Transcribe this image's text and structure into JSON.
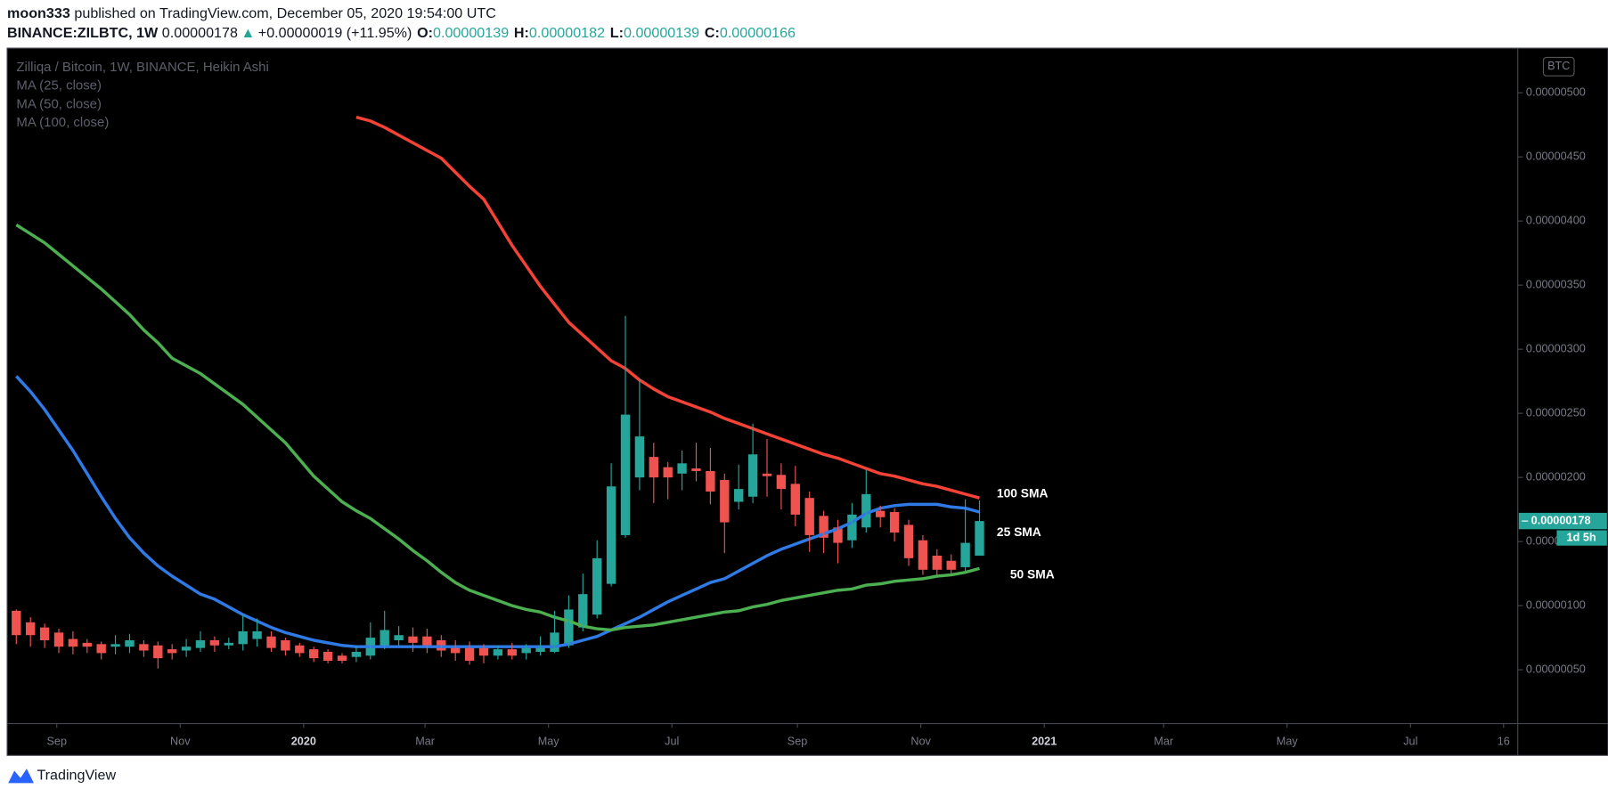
{
  "header": {
    "user": "moon333",
    "byline": "published on TradingView.com, December 05, 2020 19:54:00 UTC",
    "symbol": "BINANCE:ZILBTC, 1W",
    "last": "0.00000178",
    "arrow": "▲",
    "change": "+0.00000019 (+11.95%)",
    "ohlc": [
      {
        "key": "O:",
        "value": "0.00000139"
      },
      {
        "key": "H:",
        "value": "0.00000182"
      },
      {
        "key": "L:",
        "value": "0.00000139"
      },
      {
        "key": "C:",
        "value": "0.00000166"
      }
    ]
  },
  "chart_data": {
    "type": "candlestick",
    "title": "Zilliqa / Bitcoin, 1W, BINANCE, Heikin Ashi",
    "currency": "BTC",
    "last_price_label": "0.00000178",
    "countdown": "1d 5h",
    "up_color": "#26a69a",
    "down_color": "#ef5350",
    "x": [
      "2019-08-12",
      "2019-08-19",
      "2019-08-26",
      "2019-09-02",
      "2019-09-09",
      "2019-09-16",
      "2019-09-23",
      "2019-09-30",
      "2019-10-07",
      "2019-10-14",
      "2019-10-21",
      "2019-10-28",
      "2019-11-04",
      "2019-11-11",
      "2019-11-18",
      "2019-11-25",
      "2019-12-02",
      "2019-12-09",
      "2019-12-16",
      "2019-12-23",
      "2019-12-30",
      "2020-01-06",
      "2020-01-13",
      "2020-01-20",
      "2020-01-27",
      "2020-02-03",
      "2020-02-10",
      "2020-02-17",
      "2020-02-24",
      "2020-03-02",
      "2020-03-09",
      "2020-03-16",
      "2020-03-23",
      "2020-03-30",
      "2020-04-06",
      "2020-04-13",
      "2020-04-20",
      "2020-04-27",
      "2020-05-04",
      "2020-05-11",
      "2020-05-18",
      "2020-05-25",
      "2020-06-01",
      "2020-06-08",
      "2020-06-15",
      "2020-06-22",
      "2020-06-29",
      "2020-07-06",
      "2020-07-13",
      "2020-07-20",
      "2020-07-27",
      "2020-08-03",
      "2020-08-10",
      "2020-08-17",
      "2020-08-24",
      "2020-08-31",
      "2020-09-07",
      "2020-09-14",
      "2020-09-21",
      "2020-09-28",
      "2020-10-05",
      "2020-10-12",
      "2020-10-19",
      "2020-10-26",
      "2020-11-02",
      "2020-11-09",
      "2020-11-16",
      "2020-11-23",
      "2020-11-30"
    ],
    "open": [
      9.6e-07,
      8.7e-07,
      8.3e-07,
      7.9e-07,
      7.4e-07,
      7.1e-07,
      7e-07,
      6.8e-07,
      6.8e-07,
      7e-07,
      6.9e-07,
      6.6e-07,
      6.5e-07,
      6.7e-07,
      7.3e-07,
      6.9e-07,
      7e-07,
      7.4e-07,
      7.6e-07,
      7.3e-07,
      6.9e-07,
      6.6e-07,
      6.4e-07,
      6.1e-07,
      6e-07,
      6.1e-07,
      6.9e-07,
      7.3e-07,
      7.6e-07,
      7.6e-07,
      7.3e-07,
      6.9e-07,
      6.9e-07,
      6.7e-07,
      6.1e-07,
      6.6e-07,
      6.3e-07,
      6.4e-07,
      6.4e-07,
      6.9e-07,
      8.3e-07,
      9.3e-07,
      1.17e-06,
      1.55e-06,
      2e-06,
      2.16e-06,
      2.08e-06,
      2.03e-06,
      2.07e-06,
      2.05e-06,
      1.98e-06,
      1.81e-06,
      1.85e-06,
      2.03e-06,
      2.02e-06,
      1.95e-06,
      1.84e-06,
      1.7e-06,
      1.61e-06,
      1.51e-06,
      1.61e-06,
      1.74e-06,
      1.73e-06,
      1.63e-06,
      1.51e-06,
      1.39e-06,
      1.35e-06,
      1.3e-06,
      1.39e-06
    ],
    "high": [
      9.7e-07,
      9.1e-07,
      8.6e-07,
      8.2e-07,
      8e-07,
      7.4e-07,
      7.2e-07,
      7.7e-07,
      7.8e-07,
      7.3e-07,
      7.2e-07,
      7e-07,
      7.4e-07,
      8e-07,
      7.6e-07,
      7.5e-07,
      9.3e-07,
      9e-07,
      8e-07,
      7.5e-07,
      7.1e-07,
      6.8e-07,
      6.6e-07,
      6.3e-07,
      6.8e-07,
      8.7e-07,
      9.6e-07,
      8.4e-07,
      8.3e-07,
      8.2e-07,
      7.7e-07,
      7.3e-07,
      7.2e-07,
      7e-07,
      6.9e-07,
      7.1e-07,
      7e-07,
      7.6e-07,
      9.6e-07,
      1.08e-06,
      1.25e-06,
      1.51e-06,
      2.11e-06,
      3.26e-06,
      2.77e-06,
      2.27e-06,
      2.12e-06,
      2.21e-06,
      2.27e-06,
      2.23e-06,
      2.03e-06,
      2.1e-06,
      2.42e-06,
      2.3e-06,
      2.11e-06,
      2.09e-06,
      1.89e-06,
      1.74e-06,
      1.67e-06,
      1.8e-06,
      2.06e-06,
      1.78e-06,
      1.76e-06,
      1.67e-06,
      1.55e-06,
      1.44e-06,
      1.4e-06,
      1.83e-06,
      1.82e-06
    ],
    "low": [
      7e-07,
      6.8e-07,
      6.7e-07,
      6.3e-07,
      6.2e-07,
      6.3e-07,
      5.8e-07,
      6.2e-07,
      6.3e-07,
      6e-07,
      5.1e-07,
      5.8e-07,
      6e-07,
      6.4e-07,
      6.4e-07,
      6.6e-07,
      6.5e-07,
      6.8e-07,
      6.4e-07,
      6.1e-07,
      6e-07,
      5.6e-07,
      5.5e-07,
      5.5e-07,
      5.6e-07,
      5.8e-07,
      6.6e-07,
      6.9e-07,
      6.4e-07,
      6.3e-07,
      6e-07,
      5.7e-07,
      5.4e-07,
      5.5e-07,
      5.8e-07,
      5.8e-07,
      5.8e-07,
      6.1e-07,
      6.3e-07,
      6.7e-07,
      8e-07,
      9e-07,
      1.15e-06,
      1.53e-06,
      1.9e-06,
      1.8e-06,
      1.83e-06,
      1.9e-06,
      1.97e-06,
      1.79e-06,
      1.41e-06,
      1.75e-06,
      1.8e-06,
      1.85e-06,
      1.75e-06,
      1.62e-06,
      1.42e-06,
      1.41e-06,
      1.33e-06,
      1.45e-06,
      1.57e-06,
      1.61e-06,
      1.5e-06,
      1.31e-06,
      1.24e-06,
      1.24e-06,
      1.25e-06,
      1.26e-06,
      1.39e-06
    ],
    "close": [
      7.7e-07,
      7.7e-07,
      7.3e-07,
      6.8e-07,
      6.8e-07,
      6.8e-07,
      6.3e-07,
      7e-07,
      7.3e-07,
      6.5e-07,
      5.9e-07,
      6.3e-07,
      6.8e-07,
      7.3e-07,
      6.9e-07,
      7.1e-07,
      8e-07,
      8e-07,
      6.7e-07,
      6.5e-07,
      6.3e-07,
      5.9e-07,
      5.7e-07,
      5.7e-07,
      6.4e-07,
      7.5e-07,
      8.1e-07,
      7.7e-07,
      7.1e-07,
      6.9e-07,
      6.5e-07,
      6.3e-07,
      5.7e-07,
      6.1e-07,
      6.6e-07,
      6.1e-07,
      6.7e-07,
      6.9e-07,
      7.9e-07,
      9.7e-07,
      1.09e-06,
      1.37e-06,
      1.93e-06,
      2.49e-06,
      2.32e-06,
      2e-06,
      2e-06,
      2.11e-06,
      2.05e-06,
      1.89e-06,
      1.65e-06,
      1.91e-06,
      2.18e-06,
      2.01e-06,
      1.91e-06,
      1.71e-06,
      1.55e-06,
      1.53e-06,
      1.49e-06,
      1.71e-06,
      1.87e-06,
      1.69e-06,
      1.57e-06,
      1.37e-06,
      1.28e-06,
      1.28e-06,
      1.28e-06,
      1.49e-06,
      1.66e-06
    ],
    "series": [
      {
        "name": "MA (25, close)",
        "color": "#2f7ae5",
        "values": [
          2.79e-06,
          2.67e-06,
          2.53e-06,
          2.37e-06,
          2.21e-06,
          2.03e-06,
          1.85e-06,
          1.68e-06,
          1.53e-06,
          1.41e-06,
          1.31e-06,
          1.23e-06,
          1.16e-06,
          1.09e-06,
          1.05e-06,
          9.9e-07,
          9.3e-07,
          8.8e-07,
          8.3e-07,
          7.9e-07,
          7.6e-07,
          7.3e-07,
          7.1e-07,
          6.9e-07,
          6.8e-07,
          6.8e-07,
          6.8e-07,
          6.8e-07,
          6.8e-07,
          6.8e-07,
          6.8e-07,
          6.8e-07,
          6.8e-07,
          6.8e-07,
          6.8e-07,
          6.8e-07,
          6.8e-07,
          6.8e-07,
          6.8e-07,
          7e-07,
          7.3e-07,
          7.6e-07,
          8.1e-07,
          8.6e-07,
          9.1e-07,
          9.7e-07,
          1.03e-06,
          1.08e-06,
          1.13e-06,
          1.18e-06,
          1.21e-06,
          1.27e-06,
          1.33e-06,
          1.39e-06,
          1.44e-06,
          1.48e-06,
          1.52e-06,
          1.56e-06,
          1.6e-06,
          1.65e-06,
          1.72e-06,
          1.76e-06,
          1.78e-06,
          1.79e-06,
          1.79e-06,
          1.79e-06,
          1.77e-06,
          1.76e-06,
          1.73e-06
        ]
      },
      {
        "name": "MA (50, close)",
        "color": "#4caf50",
        "values": [
          3.97e-06,
          3.9e-06,
          3.83e-06,
          3.74e-06,
          3.65e-06,
          3.56e-06,
          3.47e-06,
          3.37e-06,
          3.27e-06,
          3.15e-06,
          3.05e-06,
          2.93e-06,
          2.87e-06,
          2.81e-06,
          2.73e-06,
          2.65e-06,
          2.57e-06,
          2.47e-06,
          2.37e-06,
          2.27e-06,
          2.14e-06,
          2.01e-06,
          1.91e-06,
          1.81e-06,
          1.74e-06,
          1.68e-06,
          1.6e-06,
          1.52e-06,
          1.43e-06,
          1.35e-06,
          1.26e-06,
          1.18e-06,
          1.12e-06,
          1.08e-06,
          1.04e-06,
          1e-06,
          9.7e-07,
          9.5e-07,
          9.1e-07,
          8.8e-07,
          8.4e-07,
          8.2e-07,
          8.1e-07,
          8.3e-07,
          8.4e-07,
          8.5e-07,
          8.7e-07,
          8.9e-07,
          9.1e-07,
          9.3e-07,
          9.5e-07,
          9.6e-07,
          9.9e-07,
          1.01e-06,
          1.04e-06,
          1.06e-06,
          1.08e-06,
          1.1e-06,
          1.12e-06,
          1.13e-06,
          1.16e-06,
          1.17e-06,
          1.19e-06,
          1.2e-06,
          1.21e-06,
          1.23e-06,
          1.24e-06,
          1.26e-06,
          1.29e-06
        ]
      },
      {
        "name": "MA (100, close)",
        "color": "#f44336",
        "values": [
          null,
          null,
          null,
          null,
          null,
          null,
          null,
          null,
          null,
          null,
          null,
          null,
          null,
          null,
          null,
          null,
          null,
          null,
          null,
          null,
          null,
          null,
          null,
          null,
          4.81e-06,
          4.78e-06,
          4.73e-06,
          4.67e-06,
          4.61e-06,
          4.55e-06,
          4.49e-06,
          4.38e-06,
          4.27e-06,
          4.17e-06,
          3.99e-06,
          3.81e-06,
          3.65e-06,
          3.49e-06,
          3.35e-06,
          3.21e-06,
          3.11e-06,
          3.01e-06,
          2.91e-06,
          2.85e-06,
          2.76e-06,
          2.69e-06,
          2.63e-06,
          2.59e-06,
          2.55e-06,
          2.51e-06,
          2.46e-06,
          2.42e-06,
          2.38e-06,
          2.34e-06,
          2.3e-06,
          2.26e-06,
          2.22e-06,
          2.18e-06,
          2.15e-06,
          2.11e-06,
          2.07e-06,
          2.03e-06,
          2.01e-06,
          1.98e-06,
          1.95e-06,
          1.93e-06,
          1.9e-06,
          1.87e-06,
          1.84e-06
        ]
      }
    ],
    "annotations": [
      "100 SMA",
      "25 SMA",
      "50 SMA"
    ],
    "xlim": [
      "2019-08-08",
      "2021-08-23"
    ],
    "xticks": [
      {
        "value": "2019-09-01",
        "label": "Sep"
      },
      {
        "value": "2019-11-01",
        "label": "Nov"
      },
      {
        "value": "2020-01-01",
        "label": "2020"
      },
      {
        "value": "2020-03-01",
        "label": "Mar"
      },
      {
        "value": "2020-05-01",
        "label": "May"
      },
      {
        "value": "2020-07-01",
        "label": "Jul"
      },
      {
        "value": "2020-09-01",
        "label": "Sep"
      },
      {
        "value": "2020-11-01",
        "label": "Nov"
      },
      {
        "value": "2021-01-01",
        "label": "2021"
      },
      {
        "value": "2021-03-01",
        "label": "Mar"
      },
      {
        "value": "2021-05-01",
        "label": "May"
      },
      {
        "value": "2021-07-01",
        "label": "Jul"
      },
      {
        "value": "2021-08-16",
        "label": "16"
      }
    ],
    "ylim": [
      8e-08,
      5.34e-06
    ],
    "yticks": [
      {
        "value": 5e-07,
        "label": "0.00000050"
      },
      {
        "value": 1e-06,
        "label": "0.00000100"
      },
      {
        "value": 1.5e-06,
        "label": "0.00000150"
      },
      {
        "value": 2e-06,
        "label": "0.00000200"
      },
      {
        "value": 2.5e-06,
        "label": "0.00000250"
      },
      {
        "value": 3e-06,
        "label": "0.00000300"
      },
      {
        "value": 3.5e-06,
        "label": "0.00000350"
      },
      {
        "value": 4e-06,
        "label": "0.00000400"
      },
      {
        "value": 4.5e-06,
        "label": "0.00000450"
      },
      {
        "value": 5e-06,
        "label": "0.00000500"
      }
    ],
    "footer": "TradingView"
  }
}
